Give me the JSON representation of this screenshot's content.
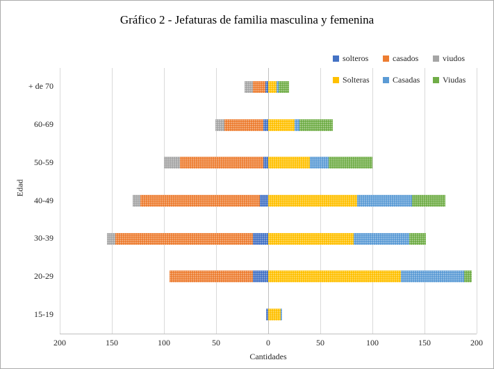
{
  "chart_data": {
    "type": "bar",
    "orientation": "horizontal-diverging-stacked",
    "title": "Gráfico 2 - Jefaturas de familia masculina y femenina",
    "xlabel": "Cantidades",
    "ylabel": "Edad",
    "categories": [
      "+ de 70",
      "60-69",
      "50-59",
      "40-49",
      "30-39",
      "20-29",
      "15-19"
    ],
    "x_tick_labels": [
      "200",
      "150",
      "100",
      "50",
      "0",
      "50",
      "100",
      "150",
      "200"
    ],
    "xlim": [
      -200,
      200
    ],
    "grid": true,
    "legend_position": "top-right",
    "series_left": [
      {
        "name": "solteros",
        "color": "#4472C4",
        "values": [
          3,
          5,
          5,
          8,
          15,
          15,
          2
        ]
      },
      {
        "name": "casados",
        "color": "#ED7D31",
        "values": [
          12,
          37,
          80,
          115,
          132,
          80,
          0
        ]
      },
      {
        "name": "viudos",
        "color": "#A5A5A5",
        "values": [
          8,
          9,
          15,
          7,
          8,
          0,
          0
        ]
      }
    ],
    "series_right": [
      {
        "name": "Solteras",
        "color": "#FFC000",
        "values": [
          8,
          25,
          40,
          85,
          82,
          127,
          12
        ]
      },
      {
        "name": "Casadas",
        "color": "#5B9BD5",
        "values": [
          2,
          5,
          18,
          53,
          53,
          61,
          1
        ]
      },
      {
        "name": "Viudas",
        "color": "#70AD47",
        "values": [
          10,
          32,
          42,
          32,
          16,
          7,
          0
        ]
      }
    ]
  }
}
